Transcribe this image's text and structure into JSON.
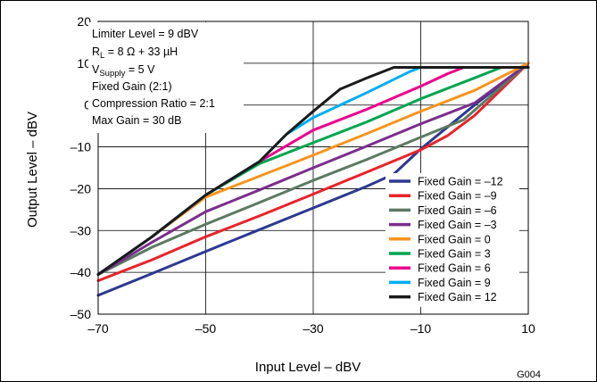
{
  "chart_data": {
    "type": "line",
    "xlabel": "Input Level – dBV",
    "ylabel": "Output Level – dBV",
    "xlim": [
      -70,
      10
    ],
    "ylim": [
      -50,
      20
    ],
    "xticks": [
      -70,
      -50,
      -30,
      -10,
      10
    ],
    "xtick_labels": [
      "–70",
      "–50",
      "–30",
      "–10",
      "10"
    ],
    "yticks": [
      -50,
      -40,
      -30,
      -20,
      -10,
      0,
      10,
      20
    ],
    "ytick_labels": [
      "–50",
      "–40",
      "–30",
      "–20",
      "–10",
      "0",
      "10",
      "20"
    ],
    "grid": true,
    "legend_position": "bottom-right",
    "annotations": [
      "Limiter Level = 9 dBV",
      "RL = 8 Ω + 33 µH",
      "VSupply = 5 V",
      "Fixed Gain (2:1)",
      "Compression Ratio = 2:1",
      "Max Gain = 30 dB"
    ],
    "annotation_parts": {
      "rl_prefix": "R",
      "rl_sub": "L",
      "rl_rest": " = 8 Ω + 33 µH",
      "vs_prefix": "V",
      "vs_sub": "Supply",
      "vs_rest": " = 5 V"
    },
    "figure_id": "G004",
    "series": [
      {
        "name": "Fixed Gain = –12",
        "color": "#2b3990",
        "points": [
          [
            -70,
            -45.5
          ],
          [
            -60,
            -40.3
          ],
          [
            -50,
            -35
          ],
          [
            -40,
            -29.8
          ],
          [
            -30,
            -24.6
          ],
          [
            -20,
            -19.4
          ],
          [
            -15,
            -16.5
          ],
          [
            -10,
            -10.5
          ],
          [
            0,
            0
          ],
          [
            10,
            10
          ]
        ]
      },
      {
        "name": "Fixed Gain = –9",
        "color": "#e8232a",
        "points": [
          [
            -70,
            -42
          ],
          [
            -60,
            -37
          ],
          [
            -50,
            -31.5
          ],
          [
            -40,
            -26.5
          ],
          [
            -30,
            -21.3
          ],
          [
            -20,
            -16
          ],
          [
            -10,
            -10.7
          ],
          [
            -5,
            -7.3
          ],
          [
            0,
            -2.5
          ],
          [
            10,
            10
          ]
        ]
      },
      {
        "name": "Fixed Gain = –6",
        "color": "#5b7a62",
        "points": [
          [
            -70,
            -40.5
          ],
          [
            -60,
            -34
          ],
          [
            -50,
            -28.5
          ],
          [
            -40,
            -23.3
          ],
          [
            -30,
            -18
          ],
          [
            -20,
            -13
          ],
          [
            -10,
            -7.7
          ],
          [
            -2,
            -3.5
          ],
          [
            10,
            10
          ]
        ]
      },
      {
        "name": "Fixed Gain = –3",
        "color": "#7b2d8e",
        "points": [
          [
            -70,
            -40.5
          ],
          [
            -60,
            -32.8
          ],
          [
            -50,
            -25.5
          ],
          [
            -40,
            -20.3
          ],
          [
            -30,
            -15
          ],
          [
            -20,
            -9.8
          ],
          [
            -10,
            -4.5
          ],
          [
            0,
            0.5
          ],
          [
            10,
            10
          ]
        ]
      },
      {
        "name": "Fixed Gain = 0",
        "color": "#f7941d",
        "points": [
          [
            -70,
            -40.5
          ],
          [
            -60,
            -31.5
          ],
          [
            -50,
            -22
          ],
          [
            -40,
            -17
          ],
          [
            -30,
            -12
          ],
          [
            -20,
            -6.8
          ],
          [
            -10,
            -1.5
          ],
          [
            0,
            3.5
          ],
          [
            10,
            10
          ]
        ]
      },
      {
        "name": "Fixed Gain = 3",
        "color": "#00a651",
        "points": [
          [
            -70,
            -40.5
          ],
          [
            -60,
            -31.5
          ],
          [
            -50,
            -21.5
          ],
          [
            -40,
            -14
          ],
          [
            -30,
            -9
          ],
          [
            -20,
            -4
          ],
          [
            -10,
            1.5
          ],
          [
            0,
            6.5
          ],
          [
            5,
            9
          ],
          [
            10,
            9
          ]
        ]
      },
      {
        "name": "Fixed Gain = 6",
        "color": "#ec008c",
        "points": [
          [
            -70,
            -40.5
          ],
          [
            -60,
            -31.5
          ],
          [
            -50,
            -21.5
          ],
          [
            -40,
            -13.5
          ],
          [
            -30,
            -6
          ],
          [
            -20,
            -1
          ],
          [
            -10,
            4.5
          ],
          [
            -5,
            7.5
          ],
          [
            -2,
            9
          ],
          [
            10,
            9
          ]
        ]
      },
      {
        "name": "Fixed Gain = 9",
        "color": "#00aeef",
        "points": [
          [
            -70,
            -40.5
          ],
          [
            -60,
            -31.5
          ],
          [
            -50,
            -21.5
          ],
          [
            -40,
            -13.5
          ],
          [
            -35,
            -7
          ],
          [
            -30,
            -3
          ],
          [
            -20,
            3
          ],
          [
            -12,
            8
          ],
          [
            -10,
            9
          ],
          [
            10,
            9
          ]
        ]
      },
      {
        "name": "Fixed Gain = 12",
        "color": "#1a1a1a",
        "points": [
          [
            -70,
            -40.5
          ],
          [
            -60,
            -31.5
          ],
          [
            -50,
            -21.5
          ],
          [
            -40,
            -13.5
          ],
          [
            -35,
            -7
          ],
          [
            -30,
            -1.5
          ],
          [
            -25,
            3.8
          ],
          [
            -20,
            6.5
          ],
          [
            -15,
            9
          ],
          [
            10,
            9
          ]
        ]
      }
    ]
  }
}
